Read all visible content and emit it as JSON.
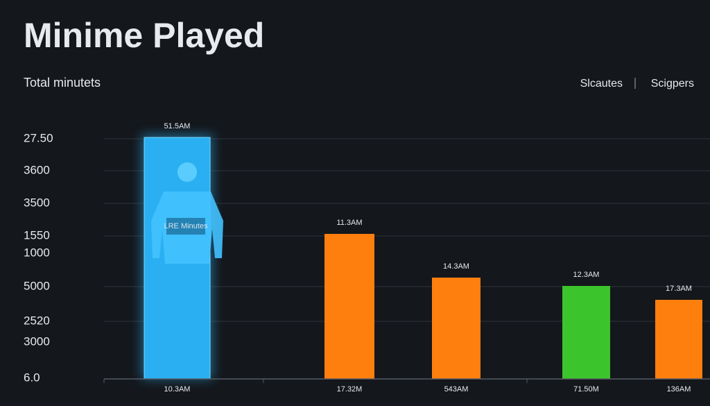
{
  "header": {
    "title": "Minime Played",
    "subtitle": "Total minutets"
  },
  "legend": [
    "Slcautes",
    "Scigpers"
  ],
  "axis_labels": [
    "27.50",
    "3600",
    "3500",
    "1550",
    "1000",
    "5000",
    "2520",
    "3000",
    "6.0"
  ],
  "bars": [
    {
      "label": "51.5AM",
      "category": "10.3AM",
      "color": "#2ab0f2",
      "jersey_text": "LRE Minutes"
    },
    {
      "label": "11.3AM",
      "category": "17.32M",
      "color": "#ff7f0e"
    },
    {
      "label": "14.3AM",
      "category": "543AM",
      "color": "#ff7f0e"
    },
    {
      "label": "12.3AM",
      "category": "71.50M",
      "color": "#3cc42c"
    },
    {
      "label": "17.3AM",
      "category": "136AM",
      "color": "#ff7f0e"
    }
  ]
}
